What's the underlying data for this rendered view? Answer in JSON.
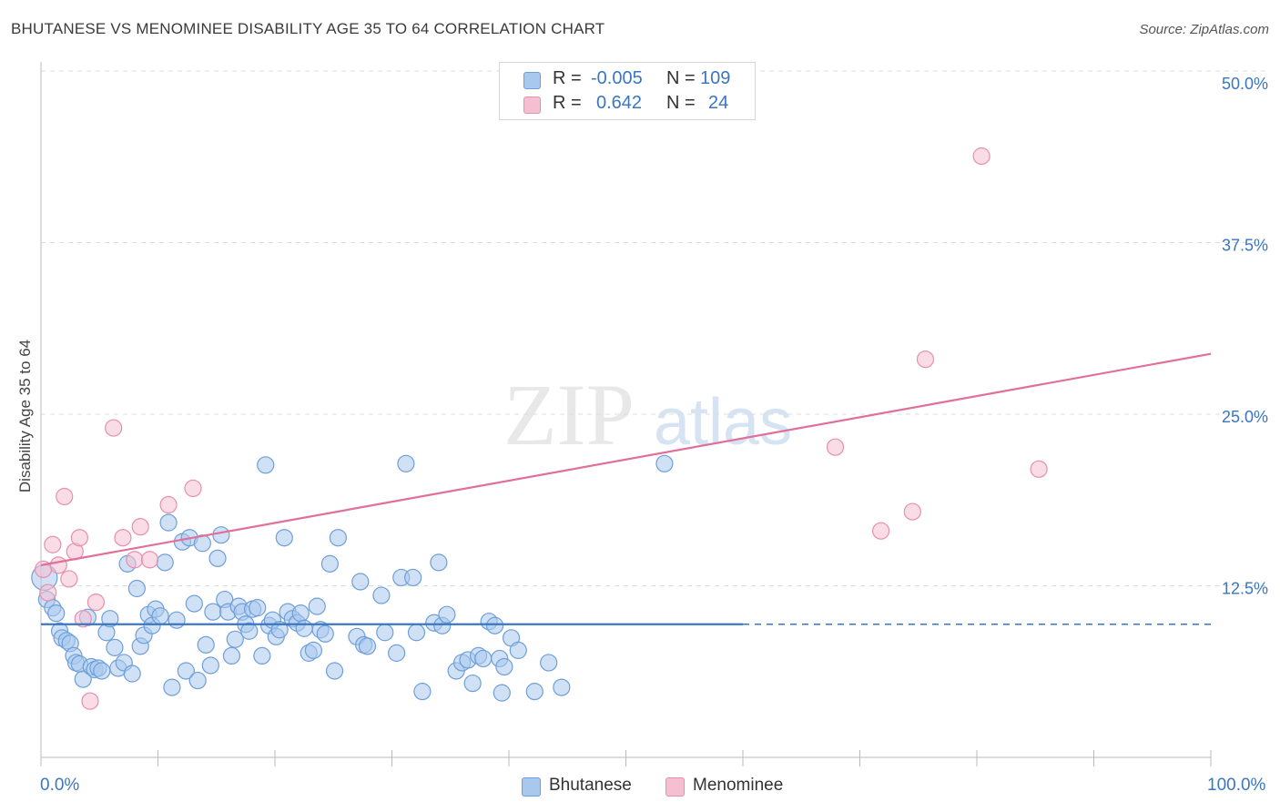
{
  "title": "BHUTANESE VS MENOMINEE DISABILITY AGE 35 TO 64 CORRELATION CHART",
  "source": "Source: ZipAtlas.com",
  "watermark": {
    "zip": "ZIP",
    "atlas": "atlas"
  },
  "colors": {
    "bhutanese_fill": "#a9c8ee",
    "bhutanese_stroke": "#6e9fd8",
    "bhutanese_line": "#3a76c2",
    "menominee_fill": "#f6bfd1",
    "menominee_stroke": "#e68fae",
    "menominee_line": "#e07099",
    "axis_text": "#3a76c2",
    "grid": "#dddddd"
  },
  "legend": {
    "rows": [
      {
        "r_label": "R =",
        "r_value": "-0.005",
        "n_label": "N =",
        "n_value": "109"
      },
      {
        "r_label": "R =",
        "r_value": "0.642",
        "n_label": "N =",
        "n_value": "24"
      }
    ]
  },
  "bottom_legend": {
    "bhutanese": "Bhutanese",
    "menominee": "Menominee"
  },
  "chart_data": {
    "type": "scatter",
    "title": "BHUTANESE VS MENOMINEE DISABILITY AGE 35 TO 64 CORRELATION CHART",
    "xlabel": "",
    "ylabel": "Disability Age 35 to 64",
    "xlim": [
      0,
      100
    ],
    "ylim": [
      0,
      50
    ],
    "x_tick_labels": [
      "0.0%",
      "100.0%"
    ],
    "y_ticks": [
      12.5,
      25.0,
      37.5,
      50.0
    ],
    "y_tick_labels": [
      "12.5%",
      "25.0%",
      "37.5%",
      "50.0%"
    ],
    "grid": true,
    "legend_position": "top-center",
    "series": [
      {
        "name": "Bhutanese",
        "R": -0.005,
        "N": 109,
        "trend": {
          "x": [
            0,
            60
          ],
          "y": [
            9.7,
            9.7
          ],
          "dashed_to_x": 100
        },
        "points": [
          [
            0.3,
            13.1
          ],
          [
            0.5,
            11.5
          ],
          [
            1.0,
            10.9
          ],
          [
            1.3,
            10.5
          ],
          [
            1.6,
            9.2
          ],
          [
            1.8,
            8.7
          ],
          [
            2.2,
            8.5
          ],
          [
            2.5,
            8.3
          ],
          [
            2.8,
            7.4
          ],
          [
            3.0,
            6.9
          ],
          [
            3.3,
            6.8
          ],
          [
            3.6,
            5.7
          ],
          [
            4.0,
            10.2
          ],
          [
            4.3,
            6.6
          ],
          [
            4.6,
            6.4
          ],
          [
            4.9,
            6.5
          ],
          [
            5.2,
            6.3
          ],
          [
            5.6,
            9.1
          ],
          [
            5.9,
            10.1
          ],
          [
            6.3,
            8.0
          ],
          [
            6.6,
            6.5
          ],
          [
            7.1,
            6.9
          ],
          [
            7.4,
            14.1
          ],
          [
            7.8,
            6.1
          ],
          [
            8.2,
            12.3
          ],
          [
            8.5,
            8.1
          ],
          [
            8.8,
            8.9
          ],
          [
            9.2,
            10.4
          ],
          [
            9.5,
            9.6
          ],
          [
            9.8,
            10.8
          ],
          [
            10.2,
            10.3
          ],
          [
            10.6,
            14.2
          ],
          [
            10.9,
            17.1
          ],
          [
            11.2,
            5.1
          ],
          [
            11.6,
            10.0
          ],
          [
            12.1,
            15.7
          ],
          [
            12.4,
            6.3
          ],
          [
            12.7,
            16.0
          ],
          [
            13.1,
            11.2
          ],
          [
            13.4,
            5.6
          ],
          [
            13.8,
            15.6
          ],
          [
            14.1,
            8.2
          ],
          [
            14.5,
            6.7
          ],
          [
            14.7,
            10.6
          ],
          [
            15.1,
            14.5
          ],
          [
            15.4,
            16.2
          ],
          [
            15.7,
            11.5
          ],
          [
            16.0,
            10.6
          ],
          [
            16.3,
            7.4
          ],
          [
            16.6,
            8.6
          ],
          [
            16.9,
            11.0
          ],
          [
            17.2,
            10.6
          ],
          [
            17.5,
            9.7
          ],
          [
            17.8,
            9.2
          ],
          [
            18.1,
            10.8
          ],
          [
            18.5,
            10.9
          ],
          [
            18.9,
            7.4
          ],
          [
            19.2,
            21.3
          ],
          [
            19.5,
            9.6
          ],
          [
            19.8,
            10.0
          ],
          [
            20.1,
            8.8
          ],
          [
            20.4,
            9.3
          ],
          [
            20.8,
            16.0
          ],
          [
            21.1,
            10.6
          ],
          [
            21.5,
            10.1
          ],
          [
            21.9,
            9.8
          ],
          [
            22.2,
            10.5
          ],
          [
            22.5,
            9.4
          ],
          [
            22.9,
            7.6
          ],
          [
            23.3,
            7.8
          ],
          [
            23.6,
            11.0
          ],
          [
            23.9,
            9.3
          ],
          [
            24.3,
            9.0
          ],
          [
            24.7,
            14.1
          ],
          [
            25.1,
            6.3
          ],
          [
            25.4,
            16.0
          ],
          [
            27.0,
            8.8
          ],
          [
            27.3,
            12.8
          ],
          [
            27.6,
            8.2
          ],
          [
            27.9,
            8.1
          ],
          [
            29.1,
            11.8
          ],
          [
            29.4,
            9.1
          ],
          [
            30.4,
            7.6
          ],
          [
            30.8,
            13.1
          ],
          [
            31.2,
            21.4
          ],
          [
            31.8,
            13.1
          ],
          [
            32.1,
            9.1
          ],
          [
            32.6,
            4.8
          ],
          [
            33.6,
            9.8
          ],
          [
            34.0,
            14.2
          ],
          [
            34.3,
            9.6
          ],
          [
            34.7,
            10.4
          ],
          [
            35.5,
            6.3
          ],
          [
            36.0,
            6.9
          ],
          [
            36.5,
            7.1
          ],
          [
            36.9,
            5.4
          ],
          [
            37.4,
            7.4
          ],
          [
            37.8,
            7.2
          ],
          [
            38.3,
            9.9
          ],
          [
            38.8,
            9.6
          ],
          [
            39.2,
            7.2
          ],
          [
            39.6,
            6.6
          ],
          [
            39.4,
            4.7
          ],
          [
            40.2,
            8.7
          ],
          [
            40.8,
            7.8
          ],
          [
            42.2,
            4.8
          ],
          [
            43.4,
            6.9
          ],
          [
            44.5,
            5.1
          ],
          [
            53.3,
            21.4
          ]
        ]
      },
      {
        "name": "Menominee",
        "R": 0.642,
        "N": 24,
        "trend": {
          "x": [
            0,
            100
          ],
          "y": [
            14.0,
            29.4
          ]
        },
        "points": [
          [
            0.2,
            13.7
          ],
          [
            0.6,
            12.0
          ],
          [
            1.0,
            15.5
          ],
          [
            1.5,
            14.0
          ],
          [
            2.0,
            19.0
          ],
          [
            2.4,
            13.0
          ],
          [
            2.9,
            15.0
          ],
          [
            3.3,
            16.0
          ],
          [
            3.6,
            10.1
          ],
          [
            4.2,
            4.1
          ],
          [
            4.7,
            11.3
          ],
          [
            6.2,
            24.0
          ],
          [
            7.0,
            16.0
          ],
          [
            8.0,
            14.4
          ],
          [
            8.5,
            16.8
          ],
          [
            9.3,
            14.4
          ],
          [
            10.9,
            18.4
          ],
          [
            13.0,
            19.6
          ],
          [
            67.9,
            22.6
          ],
          [
            71.8,
            16.5
          ],
          [
            74.5,
            17.9
          ],
          [
            75.6,
            29.0
          ],
          [
            80.4,
            43.8
          ],
          [
            85.3,
            21.0
          ]
        ]
      }
    ]
  }
}
